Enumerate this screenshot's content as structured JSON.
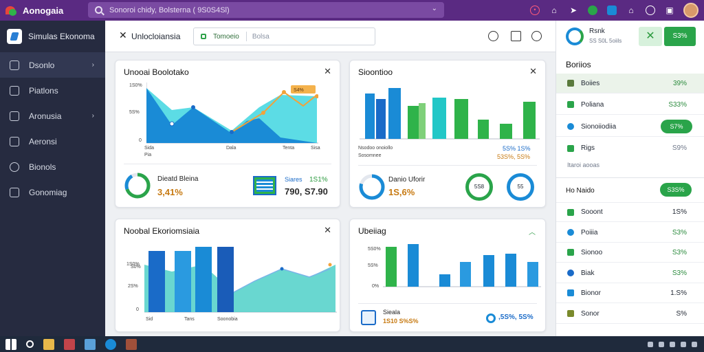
{
  "app": {
    "title": "Aonogaia"
  },
  "search": {
    "text": "Sonoroi chidy, Bolsterna ( 9S0S4Sl)"
  },
  "sidebar": {
    "brand": "Simulas Ekonoma",
    "items": [
      {
        "label": "Dsonlo",
        "icon": "chart-icon",
        "active": true,
        "arrow": true
      },
      {
        "label": "Piatlons",
        "icon": "document-icon",
        "active": false,
        "arrow": false
      },
      {
        "label": "Aronusia",
        "icon": "mail-icon",
        "active": false,
        "arrow": true
      },
      {
        "label": "Aeronsi",
        "icon": "square-icon",
        "active": false,
        "arrow": false
      },
      {
        "label": "Bionols",
        "icon": "cloud-icon",
        "active": false,
        "arrow": false
      },
      {
        "label": "Gonomiag",
        "icon": "folder-icon",
        "active": false,
        "arrow": false
      }
    ]
  },
  "header": {
    "title": "Unlocloiansia",
    "field_value": "Tomoeio",
    "field_placeholder": "Bolsa"
  },
  "cards": {
    "c1": {
      "title": "Unooai Boolotako",
      "yticks": [
        "1S0%",
        "5S%",
        "0"
      ],
      "xticks": [
        "Sida",
        "Dala",
        "Tenta",
        "Sisa"
      ],
      "xsub": "Pia",
      "annotation": "S4%",
      "metric1_label": "Dieatd Bleina",
      "metric1_value": "3,41%",
      "metric2_label": "Siares",
      "metric2_extra": "1S1%",
      "metric2_value": "790, S7.90"
    },
    "c2": {
      "title": "Sioontioo",
      "legend1": "Nsodoo onoiollo",
      "legend1_val": "5S% 1S%",
      "legend2": "Sosomnee",
      "legend2_val": "53S%, 5S%",
      "metric_label": "Danio Uforir",
      "metric_value": "1S,6%",
      "gauge1": "5S8",
      "gauge2": "55"
    },
    "c3": {
      "title": "Noobal Ekoriomsiaia",
      "yticks": [
        "1S0%",
        "S0%",
        "2S%",
        "0"
      ],
      "xticks": [
        "Sid",
        "Tans",
        "Soonobia"
      ]
    },
    "c4": {
      "title": "Ubeiiag",
      "yticks": [
        "5S0%",
        "5S%",
        "0%"
      ],
      "metric_label": "Sieala",
      "metric_value": "1S10 S%S%",
      "metric2_value": ",5S%, 5S%"
    }
  },
  "right_panel": {
    "name": "Rsnk",
    "sub": "SS S0L 5oiils",
    "pct_button": "S3%",
    "section1": "Boriios",
    "rows1": [
      {
        "label": "Boiies",
        "value": "39%",
        "badge": false,
        "color": "#5a7a3c"
      },
      {
        "label": "Poliana",
        "value": "S33%",
        "badge": false,
        "color": "#2aa44a"
      },
      {
        "label": "Sionoiiodiia",
        "value": "S7%",
        "badge": true,
        "color": "#1a8bd6"
      },
      {
        "label": "Rigs",
        "value": "S9%",
        "badge": false,
        "color": "#2aa44a"
      }
    ],
    "note": "Itaroi aooas",
    "section2_label": "Ho Naido",
    "section2_badge": "S3S%",
    "rows2": [
      {
        "label": "Sooont",
        "value": "1S%",
        "color": "#2aa44a"
      },
      {
        "label": "Poiiia",
        "value": "S3%",
        "color": "#1a8bd6"
      },
      {
        "label": "Sionoo",
        "value": "S3%",
        "color": "#2aa44a"
      },
      {
        "label": "Biak",
        "value": "S3%",
        "color": "#1a6bc8"
      },
      {
        "label": "Bionor",
        "value": "1.S%",
        "color": "#1a8bd6"
      },
      {
        "label": "Sonor",
        "value": "S%",
        "color": "#7a8a2c"
      }
    ]
  },
  "colors": {
    "topbar": "#5a2a82",
    "sidebar": "#262b40",
    "accent_green": "#2aa44a",
    "accent_blue": "#1a8bd6",
    "teal": "#3fd6e0"
  }
}
